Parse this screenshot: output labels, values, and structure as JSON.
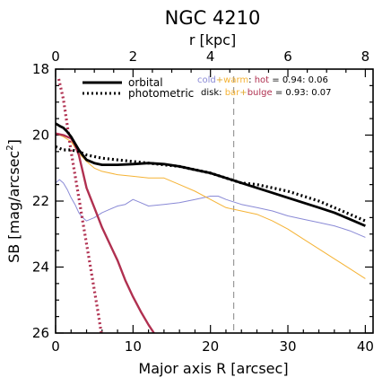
{
  "chart_data": {
    "type": "line",
    "title": "NGC 4210",
    "xlabel": "Major axis R [arcsec]",
    "ylabel": "SB [mag/arcsec",
    "ylabel_sup": "2",
    "ylabel_close": "]",
    "top_xlabel": "r [kpc]",
    "xlim": [
      0,
      41
    ],
    "ylim": [
      26,
      18
    ],
    "x_ticks": [
      0,
      10,
      20,
      30,
      40
    ],
    "y_ticks": [
      18,
      20,
      22,
      24,
      26
    ],
    "top_ticks": [
      0,
      2,
      4,
      6,
      8
    ],
    "top_axis_kpc_per_arcsec": 0.2,
    "vline_x": 23,
    "grid": false,
    "legend_position": "top-left",
    "legend": [
      {
        "label": "orbital",
        "style": "solid"
      },
      {
        "label": "photometric",
        "style": "dotted"
      }
    ],
    "annotations": {
      "line1": {
        "parts": [
          "cold",
          "+",
          "warm",
          ": ",
          "hot"
        ],
        "value": " = 0.94: 0.06"
      },
      "line2": {
        "parts": [
          "disk",
          ": ",
          "bar",
          "+",
          "bulge"
        ],
        "value": " = 0.93: 0.07"
      }
    },
    "colors": {
      "orbital": "#000000",
      "photometric": "#000000",
      "cold_warm": "#8a8ad6",
      "bar": "#f5b335",
      "hot_bulge": "#b03050",
      "vline": "#999999"
    },
    "series": [
      {
        "name": "orbital",
        "style": "solid",
        "color": "#000000",
        "x": [
          0,
          0.5,
          1.0,
          1.5,
          2.0,
          2.5,
          3.0,
          3.5,
          4.0,
          5,
          6,
          8,
          10,
          12,
          14,
          16,
          18,
          20,
          22,
          24,
          26,
          28,
          30,
          32,
          34,
          36,
          38,
          40
        ],
        "y": [
          19.65,
          19.72,
          19.78,
          19.9,
          20.05,
          20.25,
          20.45,
          20.6,
          20.75,
          20.85,
          20.9,
          20.9,
          20.88,
          20.85,
          20.88,
          20.95,
          21.05,
          21.15,
          21.3,
          21.45,
          21.6,
          21.75,
          21.9,
          22.05,
          22.2,
          22.35,
          22.55,
          22.75
        ]
      },
      {
        "name": "photometric",
        "style": "dotted",
        "color": "#000000",
        "x": [
          0,
          1,
          2,
          3,
          4,
          5,
          6,
          8,
          10,
          12,
          14,
          16,
          18,
          20,
          22,
          24,
          26,
          28,
          30,
          32,
          34,
          36,
          38,
          40
        ],
        "y": [
          20.35,
          20.45,
          20.45,
          20.5,
          20.6,
          20.65,
          20.7,
          20.75,
          20.8,
          20.85,
          20.9,
          20.95,
          21.05,
          21.15,
          21.3,
          21.45,
          21.5,
          21.6,
          21.7,
          21.85,
          22.0,
          22.2,
          22.4,
          22.6
        ]
      },
      {
        "name": "cold+warm",
        "style": "thin",
        "color": "#8a8ad6",
        "x": [
          0,
          0.5,
          1.0,
          1.5,
          2,
          2.5,
          3,
          3.5,
          4,
          5,
          6,
          7,
          8,
          9,
          10,
          11,
          12,
          14,
          16,
          18,
          20,
          21,
          22,
          24,
          26,
          28,
          30,
          32,
          34,
          36,
          38,
          40
        ],
        "y": [
          21.45,
          21.35,
          21.45,
          21.65,
          21.9,
          22.1,
          22.35,
          22.5,
          22.6,
          22.5,
          22.35,
          22.25,
          22.15,
          22.1,
          21.95,
          22.05,
          22.15,
          22.1,
          22.05,
          21.95,
          21.85,
          21.85,
          21.95,
          22.1,
          22.2,
          22.3,
          22.45,
          22.55,
          22.65,
          22.75,
          22.9,
          23.1
        ]
      },
      {
        "name": "bar",
        "style": "thin",
        "color": "#f5b335",
        "x": [
          0,
          1,
          2,
          3,
          4,
          5,
          6,
          8,
          10,
          12,
          14,
          16,
          18,
          20,
          22,
          24,
          26,
          28,
          30,
          32,
          34,
          36,
          38,
          40
        ],
        "y": [
          19.95,
          20.05,
          20.2,
          20.55,
          20.8,
          21.0,
          21.1,
          21.2,
          21.25,
          21.3,
          21.3,
          21.5,
          21.7,
          21.95,
          22.2,
          22.3,
          22.4,
          22.6,
          22.85,
          23.15,
          23.45,
          23.75,
          24.05,
          24.35
        ]
      },
      {
        "name": "hot",
        "style": "solid",
        "color": "#b03050",
        "x": [
          0,
          1,
          2,
          2.5,
          3,
          3.5,
          4,
          5,
          6,
          7,
          8,
          9,
          10,
          11,
          12,
          12.7
        ],
        "y": [
          19.95,
          20.0,
          20.1,
          20.3,
          20.6,
          21.1,
          21.6,
          22.2,
          22.8,
          23.3,
          23.8,
          24.4,
          24.9,
          25.35,
          25.75,
          26.0
        ]
      },
      {
        "name": "bulge",
        "style": "dotted",
        "color": "#b03050",
        "x": [
          0.4,
          1,
          1.5,
          2,
          2.5,
          3,
          3.5,
          4,
          4.5,
          5,
          5.5,
          5.9
        ],
        "y": [
          18.3,
          18.9,
          19.7,
          20.5,
          21.2,
          21.9,
          22.6,
          23.3,
          24.0,
          24.7,
          25.4,
          26.0
        ]
      }
    ]
  }
}
